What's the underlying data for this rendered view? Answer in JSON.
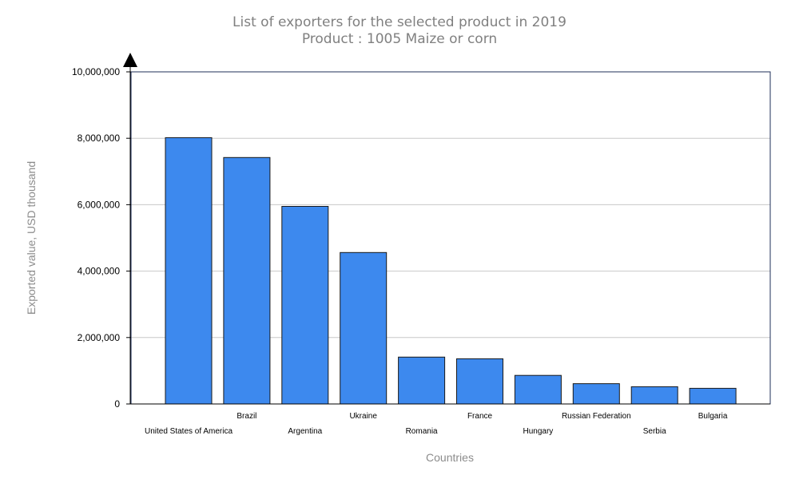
{
  "chart_data": {
    "type": "bar",
    "title": "List of exporters for the selected product in 2019",
    "subtitle": "Product : 1005 Maize or corn",
    "xlabel": "Countries",
    "ylabel": "Exported value, USD thousand",
    "categories": [
      "United States of America",
      "Brazil",
      "Argentina",
      "Ukraine",
      "Romania",
      "France",
      "Hungary",
      "Russian Federation",
      "Serbia",
      "Bulgaria"
    ],
    "values": [
      8020000,
      7420000,
      5950000,
      4560000,
      1410000,
      1360000,
      860000,
      610000,
      520000,
      470000
    ],
    "ylim": [
      0,
      10000000
    ],
    "yticks": [
      0,
      2000000,
      4000000,
      6000000,
      8000000,
      10000000
    ],
    "ytick_labels": [
      "0",
      "2,000,000",
      "4,000,000",
      "6,000,000",
      "8,000,000",
      "10,000,000"
    ],
    "grid": true,
    "legend": "none",
    "colors": {
      "bar": "#3d89ee",
      "bar_outline": "#1a1a1a",
      "grid": "#c8c8c8",
      "frame": "#1f2f5a",
      "title": "#808080",
      "axis_title": "#8c8c8c"
    }
  }
}
